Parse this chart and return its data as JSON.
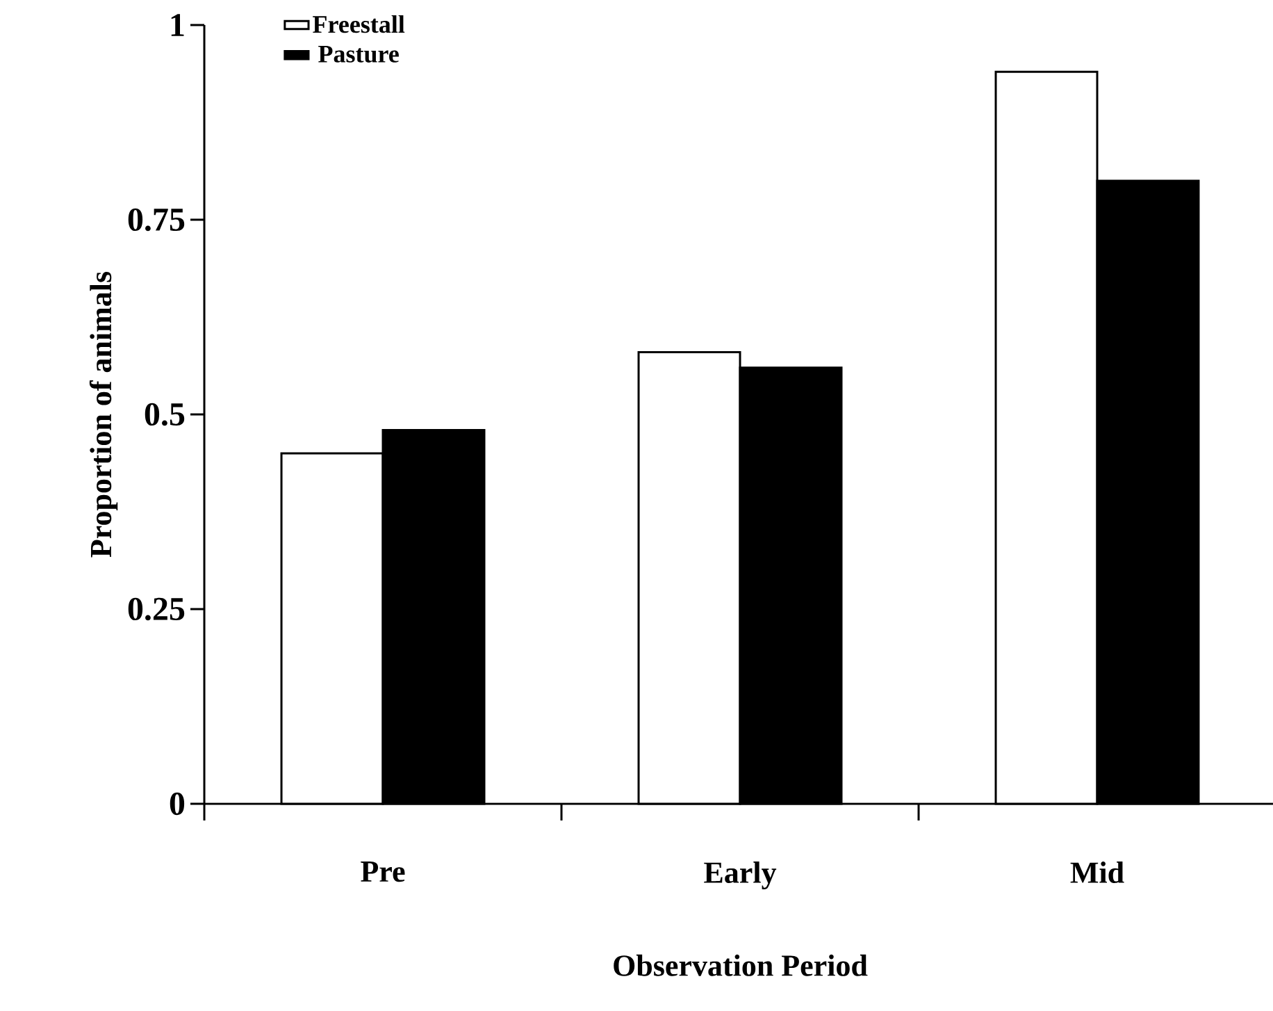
{
  "chart_data": {
    "type": "bar",
    "xlabel": "Observation Period",
    "ylabel": "Proportion of animals",
    "categories": [
      "Pre",
      "Early",
      "Mid"
    ],
    "series": [
      {
        "name": "Freestall",
        "color": "#ffffff",
        "values": [
          0.45,
          0.58,
          0.94
        ]
      },
      {
        "name": "Pasture",
        "color": "#000000",
        "values": [
          0.48,
          0.56,
          0.8
        ]
      }
    ],
    "ylim": [
      0,
      1
    ],
    "yticks": [
      0,
      0.25,
      0.5,
      0.75,
      1
    ],
    "grid": false,
    "legend": "top left"
  }
}
